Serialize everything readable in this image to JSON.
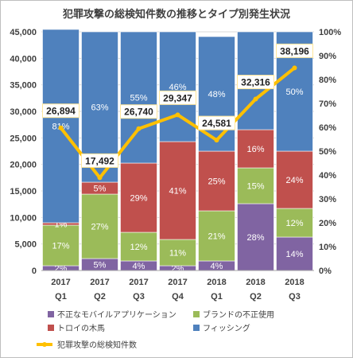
{
  "chart_data": {
    "type": "bar",
    "stacked": true,
    "title": "犯罪攻撃の総検知件数の推移とタイプ別発生状況",
    "categories": [
      [
        "2017",
        "Q1"
      ],
      [
        "2017",
        "Q2"
      ],
      [
        "2017",
        "Q3"
      ],
      [
        "2017",
        "Q4"
      ],
      [
        "2018",
        "Q1"
      ],
      [
        "2018",
        "Q2"
      ],
      [
        "2018",
        "Q3"
      ]
    ],
    "y_right": {
      "range": [
        0,
        100
      ],
      "ticks": [
        "0%",
        "10%",
        "20%",
        "30%",
        "40%",
        "50%",
        "60%",
        "70%",
        "80%",
        "90%",
        "100%"
      ]
    },
    "y_left": {
      "range": [
        0,
        45000
      ],
      "ticks": [
        "0",
        "5,000",
        "10,000",
        "15,000",
        "20,000",
        "25,000",
        "30,000",
        "35,000",
        "40,000",
        "45,000"
      ]
    },
    "series": [
      {
        "name": "不正なモバイルアプリケーション",
        "color": "#8064a2",
        "values": [
          2,
          5,
          4,
          2,
          4,
          28,
          14
        ],
        "labels": [
          "2%",
          "5%",
          "4%",
          "2%",
          "4%",
          "28%",
          "14%"
        ]
      },
      {
        "name": "ブランドの不正使用",
        "color": "#9bbb59",
        "values": [
          17,
          27,
          12,
          11,
          21,
          15,
          12
        ],
        "labels": [
          "17%",
          "27%",
          "12%",
          "11%",
          "21%",
          "15%",
          "12%"
        ]
      },
      {
        "name": "トロイの木馬",
        "color": "#c0504d",
        "values": [
          1,
          5,
          29,
          41,
          25,
          16,
          24
        ],
        "labels": [
          "1%",
          "5%",
          "29%",
          "41%",
          "25%",
          "16%",
          "24%"
        ]
      },
      {
        "name": "フィッシング",
        "color": "#4f81bd",
        "values": [
          81,
          63,
          55,
          46,
          48,
          41,
          50
        ],
        "labels": [
          "81%",
          "63%",
          "55%",
          "46%",
          "48%",
          "41%",
          "50%"
        ]
      }
    ],
    "line": {
      "name": "犯罪攻撃の総検知件数",
      "color": "#ffc000",
      "axis": "left",
      "values": [
        26894,
        17492,
        26740,
        29347,
        24581,
        32316,
        38196
      ],
      "labels": [
        "26,894",
        "17,492",
        "26,740",
        "29,347",
        "24,581",
        "32,316",
        "38,196"
      ]
    },
    "legend_position": "bottom"
  }
}
